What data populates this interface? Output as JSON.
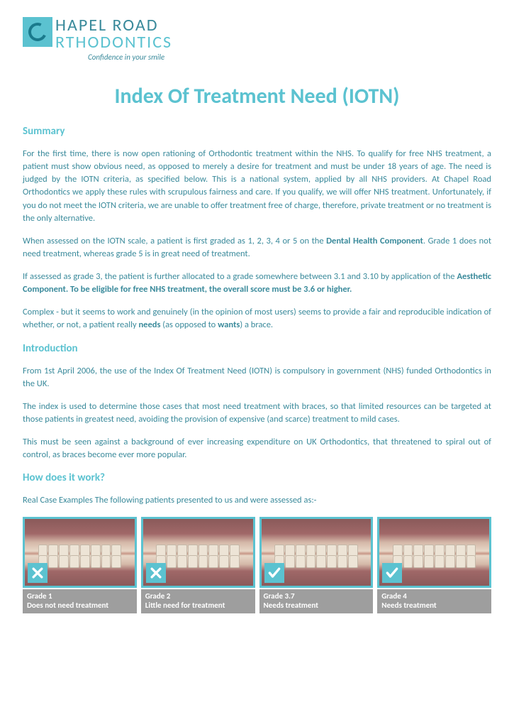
{
  "logo": {
    "line1": "HAPEL ROAD",
    "line2": "RTHODONTICS",
    "tagline": "Confidence in your smile"
  },
  "page_title": "Index Of Treatment Need (IOTN)",
  "sections": {
    "summary": {
      "heading": "Summary",
      "p1": "For the first time, there is now open rationing of Orthodontic treatment within the NHS. To qualify for free NHS treatment, a patient must show obvious need, as opposed to merely a desire for treatment and must be under 18 years of age. The need is judged by the IOTN criteria, as specified below. This is a national system, applied by all NHS providers. At Chapel Road Orthodontics we apply these rules with scrupulous fairness and care. If you qualify, we will offer NHS treatment. Unfortunately, if you do not meet the IOTN criteria, we are unable to offer treatment free of charge, therefore, private treatment or no treatment is the only alternative.",
      "p2_a": "When assessed on the IOTN scale, a patient is first graded as 1, 2, 3, 4 or 5 on the ",
      "p2_b": "Dental Health Component",
      "p2_c": ". Grade 1 does not need treatment, whereas grade 5 is in great need of treatment.",
      "p3_a": "If assessed as grade 3, the patient is further allocated to a grade somewhere between 3.1 and 3.10 by application of the ",
      "p3_b": "Aesthetic Component. To be eligible for free NHS treatment, the overall score must be 3.6 or higher.",
      "p4_a": "Complex - but it seems to work and genuinely (in the opinion of most users) seems to provide a fair and reproducible indication of whether, or not, a patient really ",
      "p4_b": "needs",
      "p4_c": " (as opposed to ",
      "p4_d": "wants",
      "p4_e": ") a brace."
    },
    "introduction": {
      "heading": "Introduction",
      "p1": "From 1st April 2006, the use of the Index Of Treatment Need (IOTN) is compulsory in government (NHS) funded Orthodontics in the UK.",
      "p2": "The index is used to determine those cases that most need treatment with braces, so that limited resources can be targeted at those patients in greatest need, avoiding the provision of expensive (and scarce) treatment to mild cases.",
      "p3": "This must be seen against a background of ever increasing expenditure on UK Orthodontics, that threatened to spiral out of control, as braces become ever more popular."
    },
    "how": {
      "heading": "How does it work?",
      "p1": "Real Case Examples The following patients presented to us and were assessed as:-"
    }
  },
  "grades": [
    {
      "title": "Grade 1",
      "sub": "Does not need treatment",
      "mark": "cross"
    },
    {
      "title": "Grade 2",
      "sub": "Little need for treatment",
      "mark": "cross"
    },
    {
      "title": "Grade 3.7",
      "sub": "Needs treatment",
      "mark": "check"
    },
    {
      "title": "Grade 4",
      "sub": "Needs treatment",
      "mark": "check"
    }
  ],
  "colors": {
    "accent": "#5bc2d0",
    "text": "#3a8a9b",
    "label_bg": "#9e9e9e",
    "white": "#ffffff"
  }
}
